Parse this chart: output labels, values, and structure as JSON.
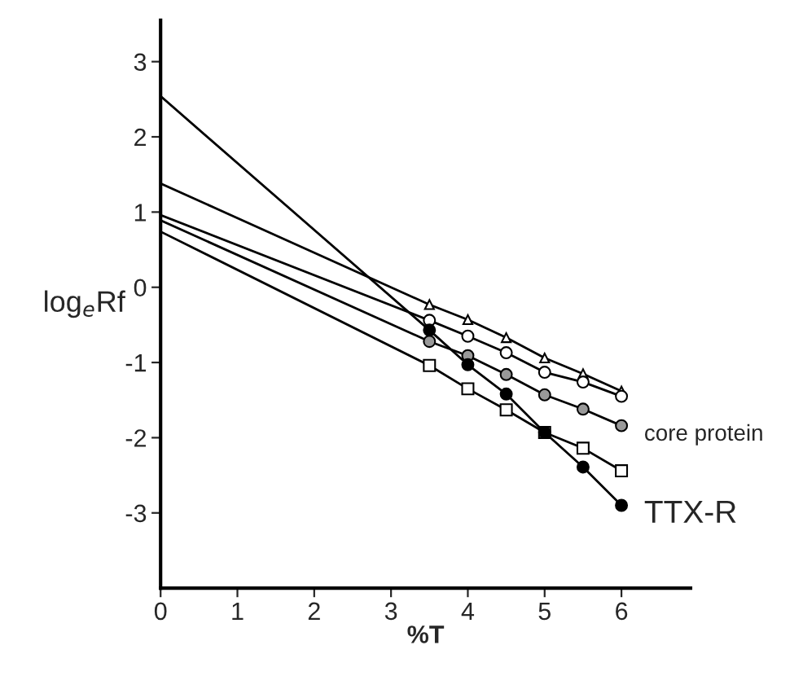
{
  "chart_data": {
    "type": "line",
    "xlabel": "%T",
    "ylabel": "log$_{e}$Rf",
    "xlim": [
      0,
      6.9
    ],
    "ylim": [
      -4.0,
      3.55
    ],
    "xticks": [
      0,
      1,
      2,
      3,
      4,
      5,
      6
    ],
    "yticks": [
      3,
      2,
      1,
      0,
      -1,
      -2,
      -3
    ],
    "grid": false,
    "legend": false,
    "series": [
      {
        "color": "#ffffff",
        "marker": "triangle",
        "x": [
          3.5,
          4,
          4.5,
          5,
          5.5,
          6
        ],
        "values": [
          -0.23,
          -0.43,
          -0.67,
          -0.94,
          -1.15,
          -1.38
        ]
      },
      {
        "color": "#ffffff",
        "marker": "circle",
        "x": [
          3.5,
          4,
          4.5,
          5,
          5.5,
          6
        ],
        "values": [
          -0.44,
          -0.65,
          -0.87,
          -1.13,
          -1.26,
          -1.45
        ]
      },
      {
        "color": "#999999",
        "marker": "circle",
        "x": [
          3.5,
          4,
          4.5,
          5,
          5.5,
          6
        ],
        "values": [
          -0.72,
          -0.91,
          -1.16,
          -1.43,
          -1.62,
          -1.84
        ]
      },
      {
        "color": "#ffffff",
        "marker": "square",
        "x": [
          3.5,
          4,
          4.5,
          5,
          5.5,
          6
        ],
        "values": [
          -1.04,
          -1.35,
          -1.63,
          -1.93,
          -2.14,
          -2.44
        ]
      },
      {
        "color": "#000000",
        "marker": "circle",
        "x": [
          3.5,
          4,
          4.5,
          5,
          5.5,
          6
        ],
        "values": [
          -0.57,
          -1.03,
          -1.42,
          -1.93,
          -2.39,
          -2.9
        ]
      },
      {
        "color": "#000000",
        "marker": "none",
        "x": [
          0,
          3.5
        ],
        "values": [
          1.38,
          -0.23
        ]
      },
      {
        "color": "#000000",
        "marker": "none",
        "x": [
          0,
          3.5
        ],
        "values": [
          0.96,
          -0.44
        ]
      },
      {
        "color": "#000000",
        "marker": "none",
        "x": [
          0,
          3.5
        ],
        "values": [
          0.89,
          -0.72
        ]
      },
      {
        "color": "#000000",
        "marker": "none",
        "x": [
          0,
          3.5
        ],
        "values": [
          0.74,
          -1.04
        ]
      },
      {
        "color": "#000000",
        "marker": "none",
        "x": [
          0,
          3.5
        ],
        "values": [
          2.54,
          -0.57
        ]
      }
    ],
    "annotations": [
      {
        "text": "core protein",
        "x": 6,
        "y": -1.84
      },
      {
        "text": "TTX-R",
        "x": 6,
        "y": -2.9
      }
    ]
  }
}
